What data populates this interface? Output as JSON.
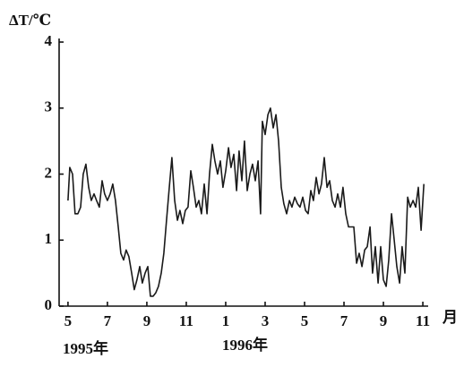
{
  "chart_data": {
    "type": "line",
    "y_label": "ΔT/℃",
    "x_unit": "月",
    "annotations": [
      "1995年",
      "1996年"
    ],
    "xlim": [
      -0.45,
      18.27
    ],
    "ylim": [
      0,
      4
    ],
    "yticks": [
      0,
      1,
      2,
      3,
      4
    ],
    "xticks": [
      {
        "value": 0,
        "label": "5"
      },
      {
        "value": 2,
        "label": "7"
      },
      {
        "value": 4,
        "label": "9"
      },
      {
        "value": 6,
        "label": "11"
      },
      {
        "value": 8,
        "label": "1"
      },
      {
        "value": 10,
        "label": "3"
      },
      {
        "value": 12,
        "label": "5"
      },
      {
        "value": 14,
        "label": "7"
      },
      {
        "value": 16,
        "label": "9"
      },
      {
        "value": 18,
        "label": "11"
      }
    ],
    "x": [
      0,
      0.09,
      0.23,
      0.36,
      0.5,
      0.64,
      0.77,
      0.91,
      1.05,
      1.18,
      1.32,
      1.45,
      1.59,
      1.73,
      1.86,
      2,
      2.14,
      2.27,
      2.41,
      2.55,
      2.68,
      2.82,
      2.95,
      3.09,
      3.23,
      3.36,
      3.5,
      3.64,
      3.77,
      3.91,
      4.05,
      4.18,
      4.32,
      4.45,
      4.59,
      4.73,
      4.86,
      5,
      5.14,
      5.27,
      5.41,
      5.55,
      5.68,
      5.82,
      5.95,
      6.09,
      6.23,
      6.36,
      6.5,
      6.64,
      6.77,
      6.91,
      7.05,
      7.18,
      7.32,
      7.45,
      7.59,
      7.73,
      7.86,
      8,
      8.14,
      8.27,
      8.41,
      8.55,
      8.68,
      8.82,
      8.95,
      9.09,
      9.23,
      9.36,
      9.5,
      9.64,
      9.77,
      9.86,
      10,
      10.14,
      10.27,
      10.41,
      10.55,
      10.68,
      10.82,
      10.95,
      11.09,
      11.23,
      11.36,
      11.5,
      11.64,
      11.77,
      11.91,
      12.05,
      12.18,
      12.32,
      12.45,
      12.59,
      12.73,
      12.86,
      13,
      13.14,
      13.27,
      13.41,
      13.55,
      13.68,
      13.82,
      13.95,
      14.09,
      14.23,
      14.36,
      14.5,
      14.64,
      14.77,
      14.91,
      15.05,
      15.18,
      15.32,
      15.45,
      15.59,
      15.73,
      15.86,
      16,
      16.14,
      16.27,
      16.41,
      16.55,
      16.68,
      16.82,
      16.95,
      17.09,
      17.23,
      17.36,
      17.5,
      17.64,
      17.77,
      17.91,
      18.05
    ],
    "series": [
      {
        "color": "#1a1a1a",
        "values": [
          1.6,
          2.1,
          2.0,
          1.4,
          1.4,
          1.5,
          2.0,
          2.15,
          1.8,
          1.6,
          1.7,
          1.6,
          1.5,
          1.9,
          1.7,
          1.6,
          1.7,
          1.85,
          1.6,
          1.2,
          0.8,
          0.7,
          0.85,
          0.75,
          0.5,
          0.25,
          0.4,
          0.6,
          0.35,
          0.5,
          0.6,
          0.15,
          0.15,
          0.2,
          0.3,
          0.5,
          0.8,
          1.3,
          1.8,
          2.25,
          1.6,
          1.3,
          1.45,
          1.25,
          1.45,
          1.5,
          2.05,
          1.8,
          1.5,
          1.6,
          1.4,
          1.85,
          1.4,
          2.0,
          2.45,
          2.2,
          2.0,
          2.2,
          1.8,
          2.05,
          2.4,
          2.1,
          2.3,
          1.75,
          2.35,
          1.9,
          2.5,
          1.75,
          2.0,
          2.15,
          1.9,
          2.2,
          1.4,
          2.8,
          2.6,
          2.9,
          3.0,
          2.7,
          2.9,
          2.5,
          1.8,
          1.55,
          1.4,
          1.6,
          1.5,
          1.65,
          1.55,
          1.5,
          1.65,
          1.45,
          1.4,
          1.75,
          1.6,
          1.95,
          1.7,
          1.85,
          2.25,
          1.8,
          1.9,
          1.6,
          1.5,
          1.7,
          1.5,
          1.8,
          1.4,
          1.2,
          1.2,
          1.2,
          0.65,
          0.8,
          0.6,
          0.85,
          0.9,
          1.2,
          0.5,
          0.9,
          0.35,
          0.9,
          0.4,
          0.3,
          0.7,
          1.4,
          1.0,
          0.6,
          0.35,
          0.9,
          0.5,
          1.65,
          1.5,
          1.6,
          1.5,
          1.8,
          1.15,
          1.85
        ]
      }
    ]
  }
}
